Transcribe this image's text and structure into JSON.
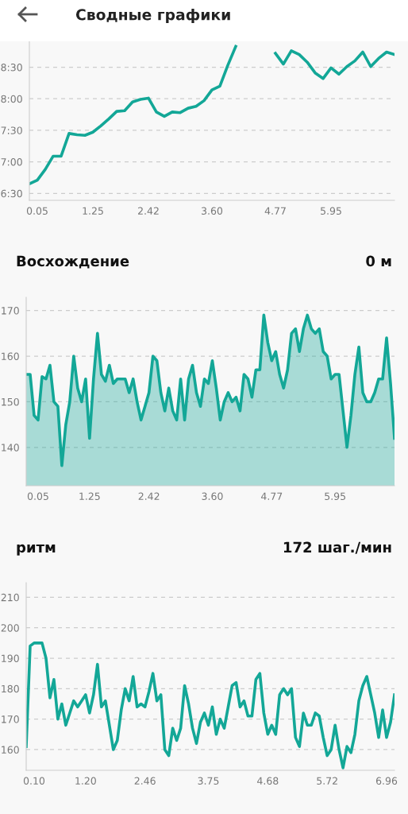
{
  "chart_data": [
    {
      "type": "line",
      "title": "Сводные графики",
      "grid": "y",
      "marker": "none",
      "line_style": "solid",
      "categories": [
        null,
        "0.05",
        null,
        null,
        null,
        null,
        null,
        null,
        "1.25",
        null,
        null,
        null,
        null,
        null,
        null,
        "2.42",
        null,
        null,
        null,
        null,
        null,
        null,
        null,
        "3.60",
        null,
        null,
        null,
        null,
        null,
        null,
        null,
        "4.77",
        null,
        null,
        null,
        null,
        null,
        null,
        "5.95",
        null,
        null,
        null,
        null,
        null,
        null,
        null,
        null
      ],
      "series": [
        {
          "color": "#13a797",
          "values": [
            6.65,
            6.71,
            6.88,
            7.09,
            7.09,
            7.45,
            7.43,
            7.42,
            7.47,
            7.57,
            7.68,
            7.8,
            7.81,
            7.95,
            7.99,
            8.01,
            7.79,
            7.72,
            7.79,
            7.78,
            7.85,
            7.88,
            7.97,
            8.14,
            8.2,
            8.53,
            8.83,
            null,
            null,
            null,
            null,
            8.72,
            8.55,
            8.76,
            8.7,
            8.58,
            8.41,
            8.32,
            8.49,
            8.39,
            8.51,
            8.6,
            8.74,
            8.51,
            8.64,
            8.74,
            8.7
          ]
        }
      ],
      "ylim": [
        6.39,
        8.91
      ],
      "yticks": [
        {
          "value": 6.5,
          "label": "6:30"
        },
        {
          "value": 7.0,
          "label": "7:00"
        },
        {
          "value": 7.5,
          "label": "7:30"
        },
        {
          "value": 8.0,
          "label": "8:00"
        },
        {
          "value": 8.5,
          "label": "8:30"
        }
      ]
    },
    {
      "type": "area",
      "title": "Восхождение",
      "annotations": [
        "0 м"
      ],
      "grid": "y",
      "marker": "none",
      "line_style": "solid",
      "categories": [
        null,
        null,
        null,
        "0.05",
        null,
        null,
        null,
        null,
        null,
        null,
        null,
        null,
        null,
        null,
        null,
        null,
        "1.25",
        null,
        null,
        null,
        null,
        null,
        null,
        null,
        null,
        null,
        null,
        null,
        null,
        null,
        null,
        "2.42",
        null,
        null,
        null,
        null,
        null,
        null,
        null,
        null,
        null,
        null,
        null,
        null,
        null,
        null,
        null,
        "3.60",
        null,
        null,
        null,
        null,
        null,
        null,
        null,
        null,
        null,
        null,
        null,
        null,
        null,
        null,
        "4.77",
        null,
        null,
        null,
        null,
        null,
        null,
        null,
        null,
        null,
        null,
        null,
        null,
        null,
        null,
        null,
        "5.95",
        null,
        null,
        null,
        null,
        null,
        null,
        null,
        null,
        null,
        null,
        null,
        null,
        null,
        null,
        null
      ],
      "series": [
        {
          "color": "#13a797",
          "values": [
            156,
            156,
            147,
            146,
            155.5,
            155,
            158,
            150,
            149,
            136,
            145,
            150,
            160,
            153,
            150,
            155,
            142,
            155,
            165,
            156,
            154.5,
            158,
            154,
            155,
            155,
            155,
            152,
            155,
            150,
            146,
            149,
            152,
            160,
            159,
            152,
            148,
            153,
            148,
            146,
            155,
            146,
            155,
            158,
            152,
            149,
            155,
            154,
            159,
            153,
            146,
            150,
            152,
            150,
            151,
            148,
            156,
            155,
            151,
            157,
            157,
            169,
            163,
            159,
            161,
            156,
            153,
            157,
            165,
            166,
            161,
            166,
            169,
            166,
            165,
            166,
            161,
            160,
            155,
            156,
            156,
            148,
            140,
            147,
            156,
            162,
            152,
            150,
            150,
            152,
            155,
            155,
            164,
            154,
            142
          ]
        }
      ],
      "ylim": [
        131.6,
        172.9
      ],
      "yticks": [
        140,
        150,
        160,
        170
      ]
    },
    {
      "type": "line",
      "title": "ритм",
      "annotations": [
        "172 шаг./мин"
      ],
      "grid": "y",
      "marker": "none",
      "line_style": "solid",
      "categories": [
        null,
        null,
        "0.10",
        null,
        null,
        null,
        null,
        null,
        null,
        null,
        null,
        null,
        null,
        null,
        null,
        "1.20",
        null,
        null,
        null,
        null,
        null,
        null,
        null,
        null,
        null,
        null,
        null,
        null,
        null,
        null,
        "2.46",
        null,
        null,
        null,
        null,
        null,
        null,
        null,
        null,
        null,
        null,
        null,
        null,
        null,
        null,
        null,
        "3.75",
        null,
        null,
        null,
        null,
        null,
        null,
        null,
        null,
        null,
        null,
        null,
        null,
        null,
        null,
        "4.68",
        null,
        null,
        null,
        null,
        null,
        null,
        null,
        null,
        null,
        null,
        null,
        null,
        null,
        null,
        "5.72",
        null,
        null,
        null,
        null,
        null,
        null,
        null,
        null,
        null,
        null,
        null,
        null,
        null,
        null,
        "6.96",
        null,
        null
      ],
      "series": [
        {
          "color": "#13a797",
          "values": [
            161,
            194,
            195,
            195,
            195,
            190,
            177,
            183,
            170,
            175,
            168,
            172,
            176,
            174,
            176,
            178,
            172,
            178,
            188,
            174,
            176,
            168,
            160,
            163,
            173,
            180,
            176,
            184,
            174,
            175,
            174,
            179,
            185,
            176,
            178,
            160,
            158,
            167,
            163,
            167,
            181,
            175,
            167,
            162,
            169,
            172,
            168,
            174,
            165,
            170,
            167,
            174,
            181,
            182,
            174,
            176,
            171,
            171,
            183,
            185,
            172,
            165,
            168,
            165,
            178,
            180,
            178,
            180,
            164,
            161,
            172,
            168,
            168,
            172,
            171,
            164,
            158,
            160,
            168,
            160,
            154,
            161,
            159,
            165,
            176,
            181,
            184,
            178,
            172,
            164,
            173,
            164,
            169,
            178
          ]
        }
      ],
      "ylim": [
        153.2,
        214.8
      ],
      "yticks": [
        160,
        170,
        180,
        190,
        200,
        210
      ]
    }
  ]
}
